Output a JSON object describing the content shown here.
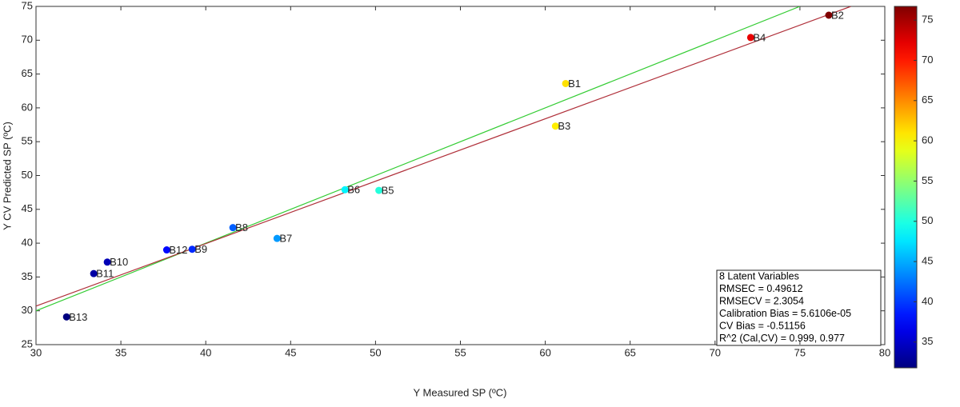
{
  "chart_data": {
    "type": "scatter",
    "xlabel": "Y Measured    SP (ºC)",
    "ylabel": "Y CV Predicted    SP (ºC)",
    "xlim": [
      30,
      80
    ],
    "xticks": [
      30,
      35,
      40,
      45,
      50,
      55,
      60,
      65,
      70,
      75,
      80
    ],
    "ylim": [
      25,
      75
    ],
    "yticks": [
      25,
      30,
      35,
      40,
      45,
      50,
      55,
      60,
      65,
      70,
      75
    ],
    "labels": [
      "B1",
      "B2",
      "B3",
      "B4",
      "B5",
      "B6",
      "B7",
      "B8",
      "B9",
      "B10",
      "B11",
      "B12",
      "B13"
    ],
    "x": [
      61.2,
      76.7,
      60.6,
      72.1,
      50.2,
      48.2,
      44.2,
      41.6,
      39.2,
      34.2,
      33.4,
      37.7,
      31.8
    ],
    "y": [
      63.6,
      73.7,
      57.3,
      70.4,
      47.8,
      47.9,
      40.7,
      42.3,
      39.1,
      37.2,
      35.5,
      39.0,
      29.1
    ],
    "lines": [
      {
        "color": "#33cc33",
        "x": [
          30,
          75
        ],
        "y": [
          30,
          75
        ]
      },
      {
        "color": "#b0303a",
        "x": [
          30,
          78
        ],
        "y": [
          30.7,
          75
        ]
      }
    ],
    "colorbar": {
      "colormap": "jet",
      "lim": [
        31.8,
        76.7
      ],
      "ticks": [
        35,
        40,
        45,
        50,
        55,
        60,
        65,
        70,
        75
      ]
    },
    "annotation": [
      "8 Latent Variables",
      "RMSEC = 0.49612",
      "RMSECV = 2.3054",
      "Calibration Bias = 5.6106e-05",
      "CV Bias = -0.51156",
      "R^2 (Cal,CV) = 0.999, 0.977"
    ]
  }
}
